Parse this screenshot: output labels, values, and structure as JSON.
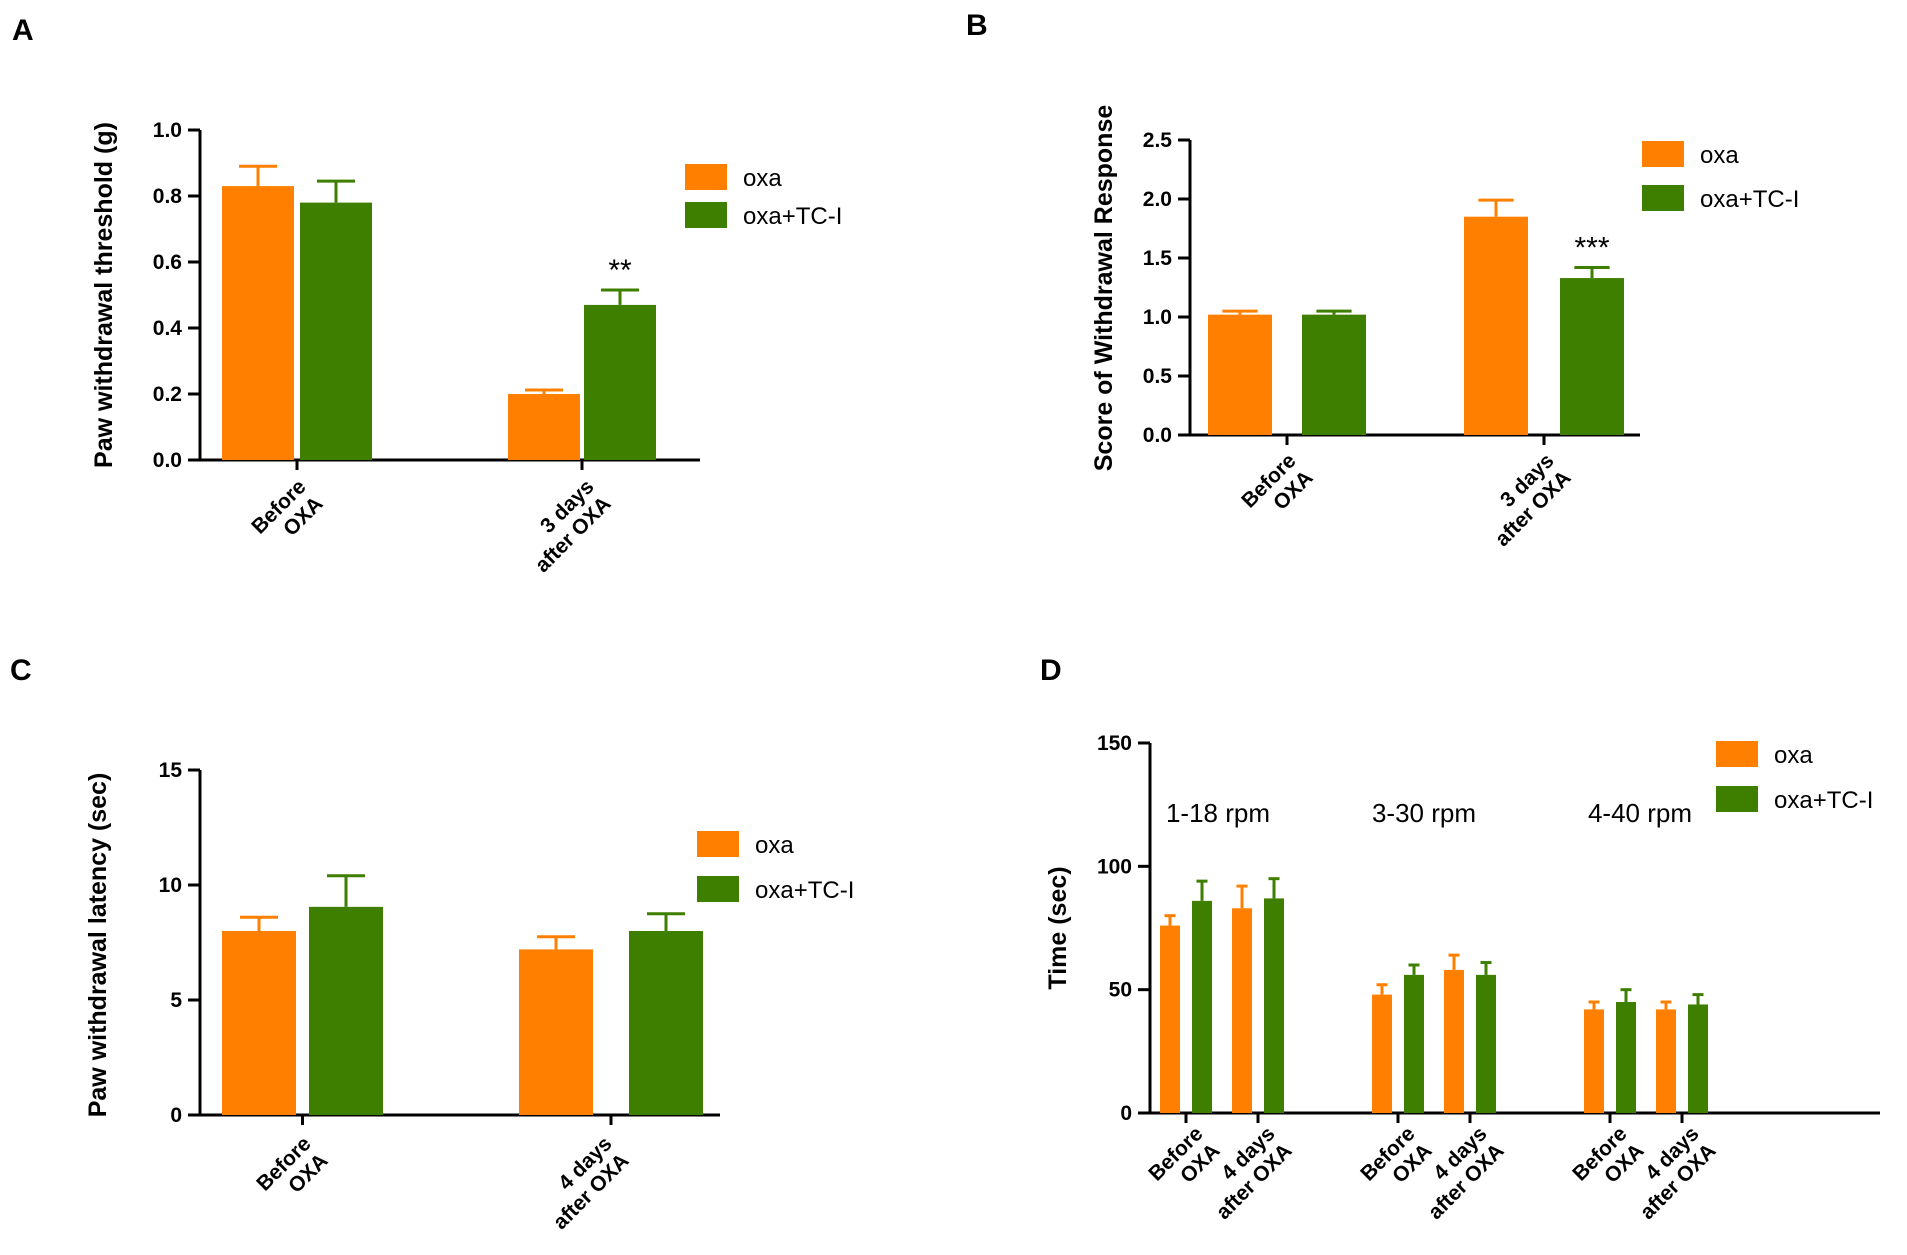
{
  "colors": {
    "oxa": "#FF8000",
    "tc": "#3F7F00",
    "axis": "#000000"
  },
  "panels": [
    {
      "letter": "A",
      "chart_data": {
        "type": "bar",
        "ylabel": "Paw withdrawal threshold (g)",
        "ylim": [
          0,
          1.0
        ],
        "yticks": [
          {
            "v": 0,
            "t": "0.0"
          },
          {
            "v": 0.2,
            "t": "0.2"
          },
          {
            "v": 0.4,
            "t": "0.4"
          },
          {
            "v": 0.6,
            "t": "0.6"
          },
          {
            "v": 0.8,
            "t": "0.8"
          },
          {
            "v": 1.0,
            "t": "1.0"
          }
        ],
        "groups": [
          {
            "lines": [
              "Before",
              "OXA"
            ],
            "bars": [
              {
                "series": "oxa",
                "value": 0.83,
                "err": 0.06
              },
              {
                "series": "oxa+TC-I",
                "value": 0.78,
                "err": 0.065
              }
            ],
            "sig": ""
          },
          {
            "lines": [
              "3 days",
              "after OXA"
            ],
            "bars": [
              {
                "series": "oxa",
                "value": 0.2,
                "err": 0.012
              },
              {
                "series": "oxa+TC-I",
                "value": 0.47,
                "err": 0.045
              }
            ],
            "sig": "**"
          }
        ],
        "legend": [
          "oxa",
          "oxa+TC-I"
        ]
      }
    },
    {
      "letter": "B",
      "chart_data": {
        "type": "bar",
        "ylabel": "Score of Withdrawal Response",
        "ylim": [
          0,
          2.5
        ],
        "yticks": [
          {
            "v": 0,
            "t": "0.0"
          },
          {
            "v": 0.5,
            "t": "0.5"
          },
          {
            "v": 1.0,
            "t": "1.0"
          },
          {
            "v": 1.5,
            "t": "1.5"
          },
          {
            "v": 2.0,
            "t": "2.0"
          },
          {
            "v": 2.5,
            "t": "2.5"
          }
        ],
        "groups": [
          {
            "lines": [
              "Before",
              "OXA"
            ],
            "bars": [
              {
                "series": "oxa",
                "value": 1.02,
                "err": 0.03
              },
              {
                "series": "oxa+TC-I",
                "value": 1.02,
                "err": 0.03
              }
            ],
            "sig": ""
          },
          {
            "lines": [
              "3 days",
              "after OXA"
            ],
            "bars": [
              {
                "series": "oxa",
                "value": 1.85,
                "err": 0.14
              },
              {
                "series": "oxa+TC-I",
                "value": 1.33,
                "err": 0.09
              }
            ],
            "sig": "***"
          }
        ],
        "legend": [
          "oxa",
          "oxa+TC-I"
        ]
      }
    },
    {
      "letter": "C",
      "chart_data": {
        "type": "bar",
        "ylabel": "Paw withdrawal  latency (sec)",
        "ylim": [
          0,
          15
        ],
        "yticks": [
          {
            "v": 0,
            "t": "0"
          },
          {
            "v": 5,
            "t": "5"
          },
          {
            "v": 10,
            "t": "10"
          },
          {
            "v": 15,
            "t": "15"
          }
        ],
        "groups": [
          {
            "lines": [
              "Before",
              "OXA"
            ],
            "bars": [
              {
                "series": "oxa",
                "value": 8.0,
                "err": 0.6
              },
              {
                "series": "oxa+TC-I",
                "value": 9.05,
                "err": 1.35
              }
            ],
            "sig": ""
          },
          {
            "lines": [
              "4 days",
              "after OXA"
            ],
            "bars": [
              {
                "series": "oxa",
                "value": 7.2,
                "err": 0.55
              },
              {
                "series": "oxa+TC-I",
                "value": 8.0,
                "err": 0.75
              }
            ],
            "sig": ""
          }
        ],
        "legend": [
          "oxa",
          "oxa+TC-I"
        ]
      }
    },
    {
      "letter": "D",
      "chart_data": {
        "type": "bar",
        "ylabel": "Time (sec)",
        "ylim": [
          0,
          150
        ],
        "yticks": [
          {
            "v": 0,
            "t": "0"
          },
          {
            "v": 50,
            "t": "50"
          },
          {
            "v": 100,
            "t": "100"
          },
          {
            "v": 150,
            "t": "150"
          }
        ],
        "blocks": [
          {
            "label": "1-18 rpm",
            "groups": [
              {
                "lines": [
                  "Before",
                  "OXA"
                ],
                "bars": [
                  {
                    "series": "oxa",
                    "value": 76,
                    "err": 4
                  },
                  {
                    "series": "oxa+TC-I",
                    "value": 86,
                    "err": 8
                  }
                ]
              },
              {
                "lines": [
                  "4 days",
                  "after OXA"
                ],
                "bars": [
                  {
                    "series": "oxa",
                    "value": 83,
                    "err": 9
                  },
                  {
                    "series": "oxa+TC-I",
                    "value": 87,
                    "err": 8
                  }
                ]
              }
            ]
          },
          {
            "label": "3-30 rpm",
            "groups": [
              {
                "lines": [
                  "Before",
                  "OXA"
                ],
                "bars": [
                  {
                    "series": "oxa",
                    "value": 48,
                    "err": 4
                  },
                  {
                    "series": "oxa+TC-I",
                    "value": 56,
                    "err": 4
                  }
                ]
              },
              {
                "lines": [
                  "4 days",
                  "after OXA"
                ],
                "bars": [
                  {
                    "series": "oxa",
                    "value": 58,
                    "err": 6
                  },
                  {
                    "series": "oxa+TC-I",
                    "value": 56,
                    "err": 5
                  }
                ]
              }
            ]
          },
          {
            "label": "4-40 rpm",
            "groups": [
              {
                "lines": [
                  "Before",
                  "OXA"
                ],
                "bars": [
                  {
                    "series": "oxa",
                    "value": 42,
                    "err": 3
                  },
                  {
                    "series": "oxa+TC-I",
                    "value": 45,
                    "err": 5
                  }
                ]
              },
              {
                "lines": [
                  "4 days",
                  "after OXA"
                ],
                "bars": [
                  {
                    "series": "oxa",
                    "value": 42,
                    "err": 3
                  },
                  {
                    "series": "oxa+TC-I",
                    "value": 44,
                    "err": 4
                  }
                ]
              }
            ]
          }
        ],
        "legend": [
          "oxa",
          "oxa+TC-I"
        ]
      }
    }
  ]
}
